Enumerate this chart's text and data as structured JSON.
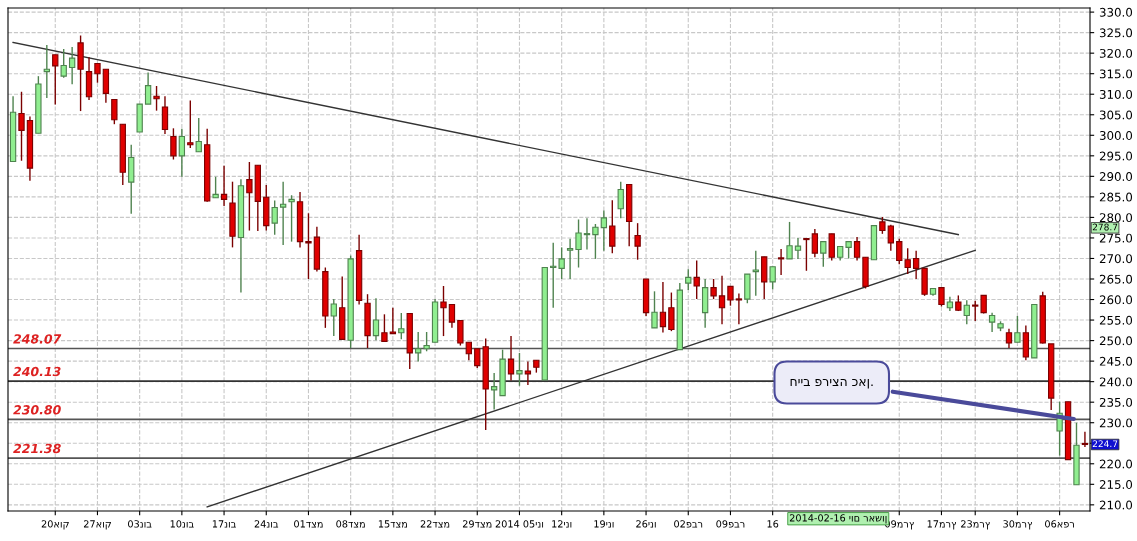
{
  "chart_data": {
    "type": "candlestick",
    "categories": [
      null,
      null,
      null,
      null,
      null,
      "20אוק",
      null,
      null,
      null,
      null,
      "27אוק",
      null,
      null,
      null,
      null,
      "03נוב",
      null,
      null,
      null,
      null,
      "10נוב",
      null,
      null,
      null,
      null,
      "17נוב",
      null,
      null,
      null,
      null,
      "24נוב",
      null,
      null,
      null,
      null,
      "01דצמ",
      null,
      null,
      null,
      null,
      "08דצמ",
      null,
      null,
      null,
      null,
      "15דצמ",
      null,
      null,
      null,
      null,
      "22דצמ",
      null,
      null,
      null,
      null,
      "29דצמ",
      null,
      null,
      null,
      null,
      "2014 05ינו",
      null,
      null,
      null,
      null,
      "12ינו",
      null,
      null,
      null,
      null,
      "19ינו",
      null,
      null,
      null,
      null,
      "26ינו",
      null,
      null,
      null,
      null,
      "02פבר",
      null,
      null,
      null,
      null,
      "09פבר",
      null,
      null,
      null,
      null,
      "16",
      null,
      null,
      null,
      null,
      null,
      null,
      null,
      null,
      null,
      null,
      null,
      null,
      null,
      null,
      "09מרץ",
      null,
      null,
      null,
      null,
      "17מרץ",
      null,
      null,
      null,
      "23מרץ",
      null,
      null,
      null,
      null,
      "30מרץ",
      null,
      null,
      null,
      null,
      "06אפר",
      null,
      null,
      null
    ],
    "ohlc": [
      [
        293.6,
        309.5,
        293.6,
        305.6
      ],
      [
        305.3,
        310.6,
        293.8,
        301.2
      ],
      [
        303.6,
        304.6,
        288.9,
        292.0
      ],
      [
        300.5,
        314.4,
        300.5,
        312.5
      ],
      [
        315.5,
        322.0,
        309.1,
        316.1
      ],
      [
        319.6,
        319.6,
        307.5,
        316.9
      ],
      [
        314.4,
        321.0,
        314.0,
        317.0
      ],
      [
        316.5,
        321.5,
        312.4,
        318.8
      ],
      [
        322.5,
        324.3,
        305.9,
        316.1
      ],
      [
        315.5,
        319.0,
        308.6,
        309.4
      ],
      [
        317.5,
        317.5,
        312.8,
        315.0
      ],
      [
        316.1,
        316.1,
        307.9,
        310.2
      ],
      [
        308.7,
        308.7,
        302.7,
        303.8
      ],
      [
        302.7,
        302.7,
        287.9,
        291.0
      ],
      [
        288.6,
        297.7,
        280.9,
        294.6
      ],
      [
        300.8,
        307.6,
        300.8,
        307.6
      ],
      [
        307.6,
        315.3,
        307.6,
        312.1
      ],
      [
        309.5,
        312.0,
        306.0,
        308.9
      ],
      [
        306.9,
        309.5,
        300.3,
        301.4
      ],
      [
        299.7,
        301.7,
        294.1,
        295.0
      ],
      [
        295.0,
        301.6,
        289.9,
        299.7
      ],
      [
        298.2,
        308.5,
        296.9,
        297.7
      ],
      [
        296.0,
        304.2,
        296.0,
        298.5
      ],
      [
        297.7,
        301.6,
        283.8,
        284.0
      ],
      [
        284.8,
        289.9,
        284.8,
        285.6
      ],
      [
        285.6,
        292.6,
        282.8,
        284.4
      ],
      [
        283.5,
        288.7,
        272.7,
        275.4
      ],
      [
        275.1,
        289.3,
        261.7,
        287.7
      ],
      [
        289.2,
        293.5,
        276.8,
        286.0
      ],
      [
        292.7,
        292.7,
        276.7,
        283.9
      ],
      [
        284.9,
        287.9,
        276.8,
        278.0
      ],
      [
        278.6,
        284.1,
        275.8,
        282.4
      ],
      [
        282.5,
        288.7,
        273.3,
        283.2
      ],
      [
        283.8,
        285.4,
        274.1,
        284.4
      ],
      [
        283.8,
        286.2,
        272.7,
        274.1
      ],
      [
        274.1,
        281.0,
        265.0,
        273.8
      ],
      [
        275.2,
        277.7,
        266.8,
        267.4
      ],
      [
        266.8,
        267.8,
        253.1,
        256.0
      ],
      [
        256.0,
        260.1,
        251.1,
        258.9
      ],
      [
        258.0,
        265.6,
        250.3,
        250.3
      ],
      [
        250.1,
        270.7,
        248.2,
        269.9
      ],
      [
        271.9,
        275.8,
        258.8,
        259.8
      ],
      [
        259.1,
        261.3,
        248.2,
        251.2
      ],
      [
        251.2,
        260.3,
        250.1,
        255.0
      ],
      [
        251.9,
        256.4,
        249.8,
        249.8
      ],
      [
        252.1,
        258.0,
        251.7,
        251.7
      ],
      [
        251.9,
        256.7,
        250.3,
        252.9
      ],
      [
        256.6,
        256.6,
        243.1,
        247.0
      ],
      [
        247.0,
        252.1,
        244.9,
        248.0
      ],
      [
        248.0,
        252.1,
        247.4,
        248.8
      ],
      [
        249.6,
        260.1,
        249.6,
        259.4
      ],
      [
        259.4,
        263.3,
        251.1,
        258.0
      ],
      [
        258.8,
        258.8,
        253.1,
        254.5
      ],
      [
        254.9,
        254.9,
        248.8,
        249.4
      ],
      [
        249.6,
        249.6,
        245.2,
        246.8
      ],
      [
        248.0,
        248.0,
        243.3,
        243.9
      ],
      [
        248.5,
        250.5,
        228.2,
        238.2
      ],
      [
        238.0,
        242.1,
        233.2,
        238.8
      ],
      [
        236.6,
        247.8,
        236.6,
        245.5
      ],
      [
        245.5,
        251.1,
        240.3,
        241.9
      ],
      [
        241.9,
        247.0,
        239.0,
        242.7
      ],
      [
        242.6,
        244.9,
        239.2,
        241.9
      ],
      [
        245.2,
        245.2,
        242.2,
        243.5
      ],
      [
        240.4,
        267.8,
        240.4,
        267.8
      ],
      [
        267.8,
        273.8,
        258.0,
        268.1
      ],
      [
        267.6,
        272.7,
        265.0,
        269.9
      ],
      [
        272.0,
        274.8,
        265.0,
        272.4
      ],
      [
        272.2,
        279.5,
        267.8,
        276.2
      ],
      [
        275.8,
        279.8,
        272.2,
        276.0
      ],
      [
        275.8,
        278.4,
        269.9,
        277.6
      ],
      [
        277.5,
        281.7,
        271.9,
        279.9
      ],
      [
        277.9,
        284.2,
        271.3,
        273.0
      ],
      [
        282.1,
        288.7,
        279.8,
        286.8
      ],
      [
        288.0,
        288.0,
        273.0,
        279.0
      ],
      [
        275.6,
        278.6,
        269.7,
        273.0
      ],
      [
        265.0,
        265.0,
        256.0,
        256.8
      ],
      [
        253.1,
        262.0,
        253.1,
        256.9
      ],
      [
        256.9,
        264.3,
        252.0,
        253.4
      ],
      [
        258.0,
        261.7,
        252.3,
        252.7
      ],
      [
        247.8,
        264.0,
        247.8,
        262.3
      ],
      [
        264.0,
        267.4,
        262.3,
        265.4
      ],
      [
        265.4,
        269.5,
        260.1,
        263.3
      ],
      [
        256.8,
        265.0,
        253.1,
        262.9
      ],
      [
        262.9,
        265.0,
        260.1,
        260.9
      ],
      [
        260.9,
        265.8,
        254.0,
        258.0
      ],
      [
        263.2,
        263.2,
        258.5,
        259.9
      ],
      [
        260.1,
        261.5,
        254.0,
        259.9
      ],
      [
        260.1,
        266.2,
        259.1,
        266.2
      ],
      [
        266.8,
        271.9,
        260.9,
        267.2
      ],
      [
        270.4,
        270.4,
        260.1,
        264.3
      ],
      [
        264.3,
        268.0,
        262.5,
        268.0
      ],
      [
        270.1,
        272.3,
        266.0,
        269.9
      ],
      [
        269.9,
        278.9,
        269.9,
        273.1
      ],
      [
        272.0,
        275.0,
        269.9,
        273.0
      ],
      [
        274.8,
        275.0,
        267.0,
        274.6
      ],
      [
        276.0,
        277.2,
        270.3,
        271.3
      ],
      [
        271.3,
        274.1,
        268.0,
        274.1
      ],
      [
        276.0,
        276.0,
        269.5,
        270.3
      ],
      [
        270.3,
        272.9,
        269.5,
        272.9
      ],
      [
        272.7,
        274.1,
        270.0,
        274.1
      ],
      [
        274.1,
        275.2,
        269.5,
        270.3
      ],
      [
        270.3,
        270.3,
        262.7,
        263.2
      ],
      [
        269.7,
        278.0,
        269.7,
        278.0
      ],
      [
        278.9,
        280.1,
        276.0,
        276.8
      ],
      [
        277.9,
        278.2,
        271.9,
        273.8
      ],
      [
        274.1,
        274.8,
        268.6,
        269.5
      ],
      [
        269.7,
        272.5,
        266.2,
        267.8
      ],
      [
        270.0,
        271.9,
        265.0,
        267.6
      ],
      [
        267.6,
        267.6,
        260.9,
        261.3
      ],
      [
        261.3,
        262.7,
        260.9,
        262.7
      ],
      [
        262.9,
        262.9,
        258.3,
        258.8
      ],
      [
        258.0,
        260.7,
        257.2,
        259.4
      ],
      [
        259.4,
        261.0,
        257.2,
        257.4
      ],
      [
        256.1,
        259.8,
        254.0,
        258.6
      ],
      [
        258.6,
        259.7,
        254.8,
        258.4
      ],
      [
        261.0,
        261.0,
        256.6,
        256.8
      ],
      [
        254.5,
        256.8,
        252.1,
        256.1
      ],
      [
        253.1,
        254.7,
        252.3,
        254.1
      ],
      [
        251.9,
        252.9,
        248.2,
        249.4
      ],
      [
        249.6,
        256.0,
        249.6,
        251.9
      ],
      [
        251.9,
        253.7,
        245.2,
        246.0
      ],
      [
        245.8,
        258.8,
        245.8,
        258.8
      ],
      [
        260.9,
        261.9,
        249.3,
        249.4
      ],
      [
        249.2,
        249.2,
        233.1,
        236.0
      ],
      [
        228.0,
        235.1,
        222.0,
        232.3
      ],
      [
        235.1,
        235.1,
        221.0,
        221.0
      ],
      [
        214.9,
        230.0,
        214.9,
        224.5
      ],
      [
        224.9,
        227.8,
        224.1,
        224.7
      ]
    ],
    "colors": [
      "#90ee90",
      "#e00000",
      "#e00000",
      "#90ee90",
      "#90ee90",
      "#e00000",
      "#90ee90",
      "#90ee90",
      "#e00000",
      "#e00000",
      "#e00000",
      "#e00000",
      "#e00000",
      "#e00000",
      "#90ee90",
      "#90ee90",
      "#90ee90",
      "#e00000",
      "#e00000",
      "#e00000",
      "#90ee90",
      "#e00000",
      "#90ee90",
      "#e00000",
      "#90ee90",
      "#e00000",
      "#e00000",
      "#90ee90",
      "#e00000",
      "#e00000",
      "#e00000",
      "#90ee90",
      "#90ee90",
      "#90ee90",
      "#e00000",
      "#e00000",
      "#e00000",
      "#e00000",
      "#90ee90",
      "#e00000",
      "#90ee90",
      "#e00000",
      "#e00000",
      "#90ee90",
      "#e00000",
      "#e00000",
      "#90ee90",
      "#e00000",
      "#90ee90",
      "#90ee90",
      "#90ee90",
      "#e00000",
      "#e00000",
      "#e00000",
      "#e00000",
      "#e00000",
      "#e00000",
      "#90ee90",
      "#90ee90",
      "#e00000",
      "#90ee90",
      "#e00000",
      "#e00000",
      "#90ee90",
      "#90ee90",
      "#90ee90",
      "#90ee90",
      "#90ee90",
      "#90ee90",
      "#90ee90",
      "#90ee90",
      "#e00000",
      "#90ee90",
      "#e00000",
      "#e00000",
      "#e00000",
      "#90ee90",
      "#e00000",
      "#e00000",
      "#90ee90",
      "#90ee90",
      "#e00000",
      "#90ee90",
      "#e00000",
      "#e00000",
      "#e00000",
      "#e00000",
      "#90ee90",
      "#90ee90",
      "#e00000",
      "#90ee90",
      "#e00000",
      "#90ee90",
      "#90ee90",
      "#e00000",
      "#e00000",
      "#90ee90",
      "#e00000",
      "#90ee90",
      "#90ee90",
      "#e00000",
      "#e00000",
      "#90ee90",
      "#e00000",
      "#e00000",
      "#e00000",
      "#e00000",
      "#e00000",
      "#e00000",
      "#90ee90",
      "#e00000",
      "#90ee90",
      "#e00000",
      "#90ee90",
      "#e00000",
      "#e00000",
      "#90ee90",
      "#90ee90",
      "#e00000",
      "#90ee90",
      "#e00000",
      "#90ee90",
      "#e00000",
      "#e00000",
      "#90ee90",
      "#e00000",
      "#90ee90",
      "#e00000"
    ],
    "series": [
      {
        "type": "line",
        "color": "#333333",
        "values": [
          322.6,
          null,
          null,
          null,
          null,
          null,
          null,
          null,
          null,
          null,
          null,
          null,
          null,
          null,
          null,
          null,
          null,
          null,
          null,
          null,
          null,
          null,
          null,
          null,
          null,
          null,
          null,
          null,
          null,
          null,
          null,
          null,
          null,
          null,
          null,
          null,
          null,
          null,
          null,
          null,
          null,
          null,
          null,
          null,
          null,
          null,
          null,
          null,
          null,
          null,
          null,
          null,
          null,
          null,
          null,
          null,
          null,
          null,
          null,
          null,
          null,
          null,
          null,
          null,
          null,
          null,
          null,
          null,
          null,
          null,
          null,
          null,
          null,
          null,
          null,
          null,
          null,
          null,
          null,
          null,
          null,
          null,
          null,
          null,
          null,
          null,
          null,
          null,
          null,
          null,
          null,
          null,
          null,
          null,
          null,
          null,
          null,
          null,
          null,
          null,
          null,
          null,
          null,
          null,
          null,
          null,
          null,
          null,
          null,
          null,
          null,
          null,
          275.8,
          null,
          null,
          null,
          null,
          null,
          null,
          null,
          null,
          null,
          null,
          null,
          null,
          null,
          null,
          null
        ]
      },
      {
        "type": "line",
        "color": "#333333",
        "values": [
          null,
          null,
          null,
          null,
          null,
          null,
          null,
          null,
          null,
          null,
          null,
          null,
          null,
          null,
          null,
          null,
          null,
          null,
          null,
          null,
          null,
          null,
          null,
          209.5,
          null,
          null,
          null,
          null,
          null,
          null,
          null,
          null,
          null,
          null,
          null,
          null,
          null,
          null,
          null,
          null,
          null,
          null,
          null,
          null,
          null,
          null,
          null,
          null,
          null,
          null,
          null,
          null,
          null,
          null,
          null,
          null,
          null,
          null,
          null,
          null,
          null,
          null,
          null,
          null,
          null,
          null,
          null,
          null,
          null,
          null,
          null,
          null,
          null,
          null,
          null,
          null,
          null,
          null,
          null,
          null,
          null,
          null,
          null,
          null,
          null,
          null,
          null,
          null,
          null,
          null,
          null,
          null,
          null,
          null,
          null,
          null,
          null,
          null,
          null,
          null,
          null,
          null,
          null,
          null,
          null,
          null,
          null,
          null,
          null,
          null,
          null,
          null,
          null,
          null,
          272.0,
          null,
          null,
          null,
          null,
          null,
          null,
          null,
          null,
          null,
          null,
          null,
          null,
          null
        ]
      }
    ],
    "ylim": [
      208.5,
      331
    ],
    "yticks": [
      {
        "value": 210,
        "label": "210.0"
      },
      {
        "value": 215,
        "label": "215.0"
      },
      {
        "value": 220,
        "label": "220.0"
      },
      {
        "value": 225,
        "label": null
      },
      {
        "value": 230,
        "label": "230.0"
      },
      {
        "value": 235,
        "label": "235.0"
      },
      {
        "value": 240,
        "label": "240.0"
      },
      {
        "value": 245,
        "label": "245.0"
      },
      {
        "value": 250,
        "label": "250.0"
      },
      {
        "value": 255,
        "label": "255.0"
      },
      {
        "value": 260,
        "label": "260.0"
      },
      {
        "value": 265,
        "label": "265.0"
      },
      {
        "value": 270,
        "label": "270.0"
      },
      {
        "value": 275,
        "label": "275.0"
      },
      {
        "value": 280,
        "label": "280.0"
      },
      {
        "value": 285,
        "label": "285.0"
      },
      {
        "value": 290,
        "label": "290.0"
      },
      {
        "value": 295,
        "label": "295.0"
      },
      {
        "value": 300,
        "label": "300.0"
      },
      {
        "value": 305,
        "label": "305.0"
      },
      {
        "value": 310,
        "label": "310.0"
      },
      {
        "value": 315,
        "label": "315.0"
      },
      {
        "value": 320,
        "label": "320.0"
      },
      {
        "value": 325,
        "label": "325.0"
      },
      {
        "value": 330,
        "label": "330.0"
      }
    ],
    "grid": true,
    "ref_lines": [
      {
        "axis": "y",
        "value": 248.07,
        "label": "248.07",
        "color": "#555555"
      },
      {
        "axis": "y",
        "value": 240.13,
        "label": "240.13",
        "color": "#333333"
      },
      {
        "axis": "y",
        "value": 230.8,
        "label": "230.80",
        "color": "#555555"
      },
      {
        "axis": "y",
        "value": 221.38,
        "label": "221.38",
        "color": "#555555"
      }
    ],
    "annotations": [
      {
        "text": "חייב פריצה כאן.",
        "y": 230.8
      },
      "278.7",
      "224.7",
      "2014-02-16 יום ראשון"
    ]
  }
}
